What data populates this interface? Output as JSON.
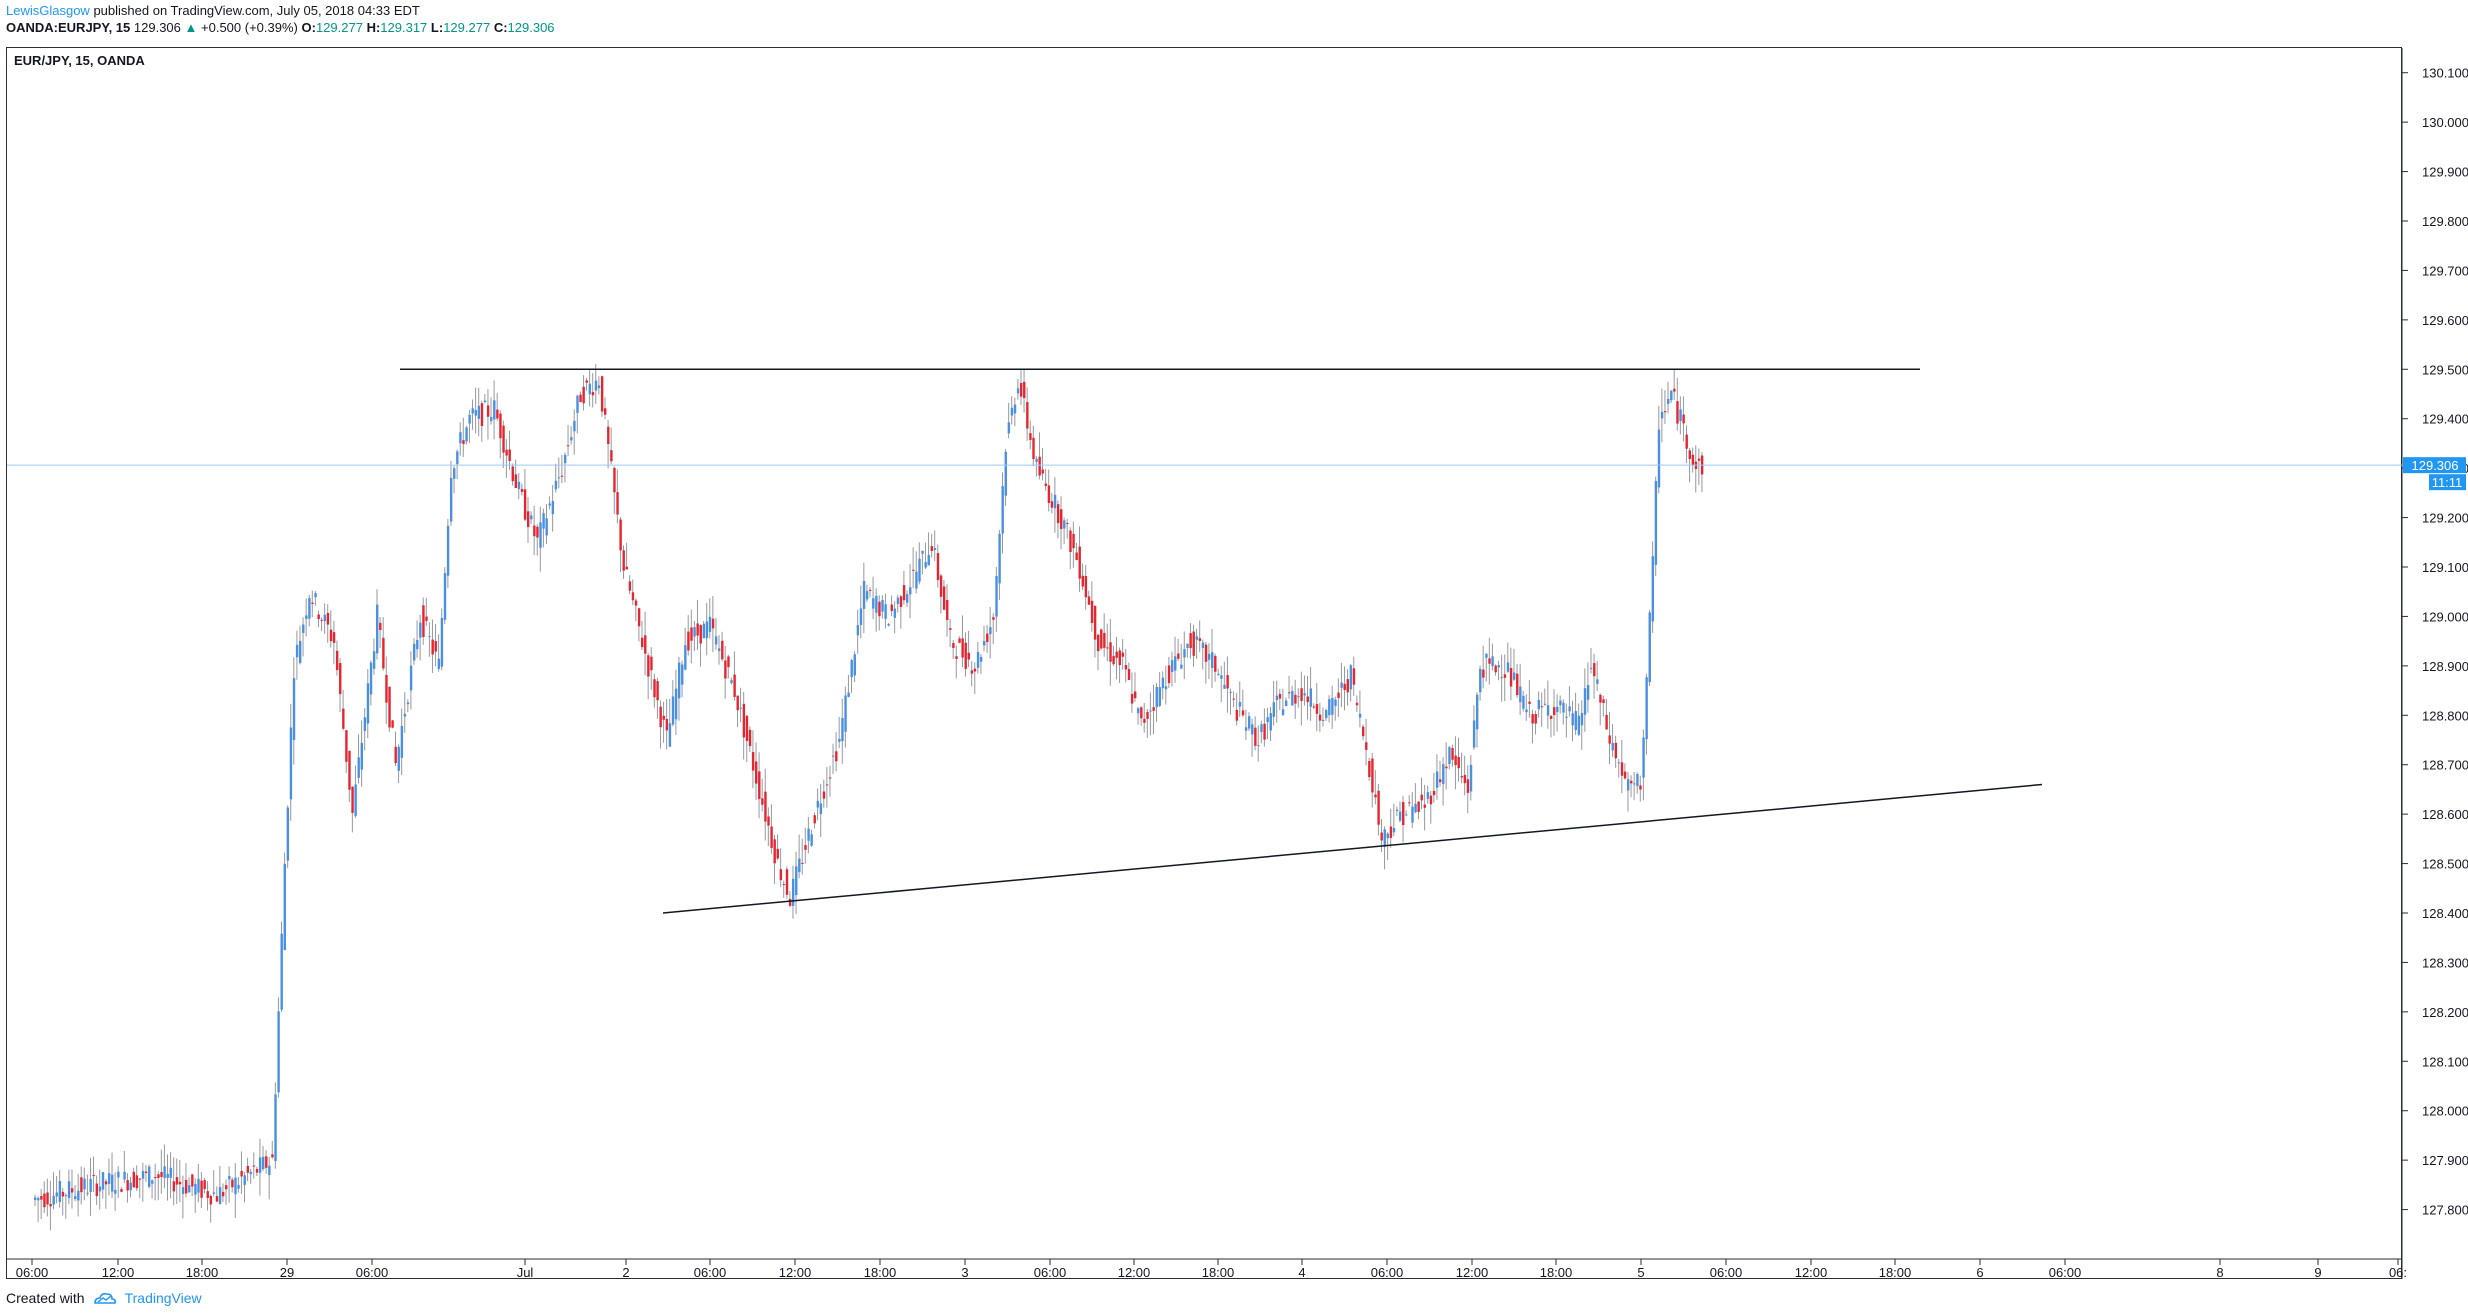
{
  "header": {
    "author": "LewisGlasgow",
    "published_text": "published on TradingView.com, July 05, 2018 04:33 EDT",
    "symbol": "OANDA:EURJPY, 15",
    "last": "129.306",
    "change_arrow": "▲",
    "change": "+0.500 (+0.39%)",
    "o_label": "O:",
    "o_value": "129.277",
    "h_label": "H:",
    "h_value": "129.317",
    "l_label": "L:",
    "l_value": "129.277",
    "c_label": "C:",
    "c_value": "129.306"
  },
  "legend": {
    "symbol_title": "EUR/JPY, 15, OANDA"
  },
  "footer": {
    "created_with": "Created with",
    "brand": "TradingView",
    "logo_icon": "tradingview-cloud-icon"
  },
  "colors": {
    "up": "#4a90e2",
    "down": "#e3262f",
    "wick": "#9598a1",
    "last_price": "#2196f3",
    "trendline": "#131722"
  },
  "chart_data": {
    "type": "candlestick",
    "title": "EUR/JPY, 15, OANDA",
    "ylim": [
      127.7,
      130.15
    ],
    "y_ticks": [
      "130.100",
      "130.000",
      "129.900",
      "129.800",
      "129.700",
      "129.600",
      "129.500",
      "129.400",
      "129.300",
      "129.200",
      "129.100",
      "129.000",
      "128.900",
      "128.800",
      "128.700",
      "128.600",
      "128.500",
      "128.400",
      "128.300",
      "128.200",
      "128.100",
      "128.000",
      "127.900",
      "127.800"
    ],
    "x_ticks": [
      "06:00",
      "12:00",
      "18:00",
      "29",
      "06:00",
      "Jul",
      "2",
      "06:00",
      "12:00",
      "18:00",
      "3",
      "06:00",
      "12:00",
      "18:00",
      "4",
      "06:00",
      "12:00",
      "18:00",
      "5",
      "06:00",
      "12:00",
      "18:00",
      "6",
      "06:00",
      "8",
      "9",
      "06:"
    ],
    "last_price": {
      "value": 129.306,
      "label": "129.306",
      "countdown": "11:11"
    },
    "horizontal_lines": [
      {
        "value": 129.5
      }
    ],
    "trend_lines": [
      {
        "from": 128.4,
        "to": 128.66
      }
    ],
    "series": [
      {
        "x": 0,
        "value": 127.82
      },
      {
        "x": 20,
        "value": 127.85
      },
      {
        "x": 40,
        "value": 127.87
      },
      {
        "x": 60,
        "value": 127.83
      },
      {
        "x": 78,
        "value": 127.9
      },
      {
        "x": 82,
        "value": 128.5
      },
      {
        "x": 85,
        "value": 128.9
      },
      {
        "x": 90,
        "value": 129.05
      },
      {
        "x": 98,
        "value": 128.95
      },
      {
        "x": 104,
        "value": 128.6
      },
      {
        "x": 112,
        "value": 129.0
      },
      {
        "x": 118,
        "value": 128.7
      },
      {
        "x": 126,
        "value": 129.0
      },
      {
        "x": 132,
        "value": 128.9
      },
      {
        "x": 136,
        "value": 129.3
      },
      {
        "x": 142,
        "value": 129.4
      },
      {
        "x": 150,
        "value": 129.42
      },
      {
        "x": 158,
        "value": 129.25
      },
      {
        "x": 164,
        "value": 129.15
      },
      {
        "x": 172,
        "value": 129.3
      },
      {
        "x": 178,
        "value": 129.45
      },
      {
        "x": 184,
        "value": 129.48
      },
      {
        "x": 192,
        "value": 129.1
      },
      {
        "x": 198,
        "value": 128.95
      },
      {
        "x": 206,
        "value": 128.75
      },
      {
        "x": 212,
        "value": 128.95
      },
      {
        "x": 220,
        "value": 128.98
      },
      {
        "x": 228,
        "value": 128.85
      },
      {
        "x": 236,
        "value": 128.65
      },
      {
        "x": 242,
        "value": 128.5
      },
      {
        "x": 246,
        "value": 128.43
      },
      {
        "x": 254,
        "value": 128.6
      },
      {
        "x": 262,
        "value": 128.75
      },
      {
        "x": 270,
        "value": 129.05
      },
      {
        "x": 278,
        "value": 129.0
      },
      {
        "x": 286,
        "value": 129.08
      },
      {
        "x": 292,
        "value": 129.15
      },
      {
        "x": 298,
        "value": 128.95
      },
      {
        "x": 306,
        "value": 128.9
      },
      {
        "x": 312,
        "value": 129.0
      },
      {
        "x": 316,
        "value": 129.35
      },
      {
        "x": 320,
        "value": 129.48
      },
      {
        "x": 326,
        "value": 129.3
      },
      {
        "x": 334,
        "value": 129.2
      },
      {
        "x": 340,
        "value": 129.1
      },
      {
        "x": 346,
        "value": 128.95
      },
      {
        "x": 354,
        "value": 128.9
      },
      {
        "x": 360,
        "value": 128.78
      },
      {
        "x": 368,
        "value": 128.88
      },
      {
        "x": 376,
        "value": 128.95
      },
      {
        "x": 384,
        "value": 128.9
      },
      {
        "x": 390,
        "value": 128.82
      },
      {
        "x": 398,
        "value": 128.75
      },
      {
        "x": 404,
        "value": 128.82
      },
      {
        "x": 412,
        "value": 128.85
      },
      {
        "x": 420,
        "value": 128.8
      },
      {
        "x": 428,
        "value": 128.88
      },
      {
        "x": 434,
        "value": 128.7
      },
      {
        "x": 438,
        "value": 128.55
      },
      {
        "x": 444,
        "value": 128.6
      },
      {
        "x": 452,
        "value": 128.62
      },
      {
        "x": 460,
        "value": 128.72
      },
      {
        "x": 466,
        "value": 128.65
      },
      {
        "x": 470,
        "value": 128.9
      },
      {
        "x": 478,
        "value": 128.9
      },
      {
        "x": 486,
        "value": 128.8
      },
      {
        "x": 494,
        "value": 128.82
      },
      {
        "x": 502,
        "value": 128.78
      },
      {
        "x": 506,
        "value": 128.9
      },
      {
        "x": 512,
        "value": 128.75
      },
      {
        "x": 518,
        "value": 128.65
      },
      {
        "x": 522,
        "value": 128.66
      },
      {
        "x": 526,
        "value": 129.1
      },
      {
        "x": 528,
        "value": 129.4
      },
      {
        "x": 532,
        "value": 129.45
      },
      {
        "x": 536,
        "value": 129.38
      },
      {
        "x": 540,
        "value": 129.3
      },
      {
        "x": 542,
        "value": 129.306
      }
    ]
  }
}
